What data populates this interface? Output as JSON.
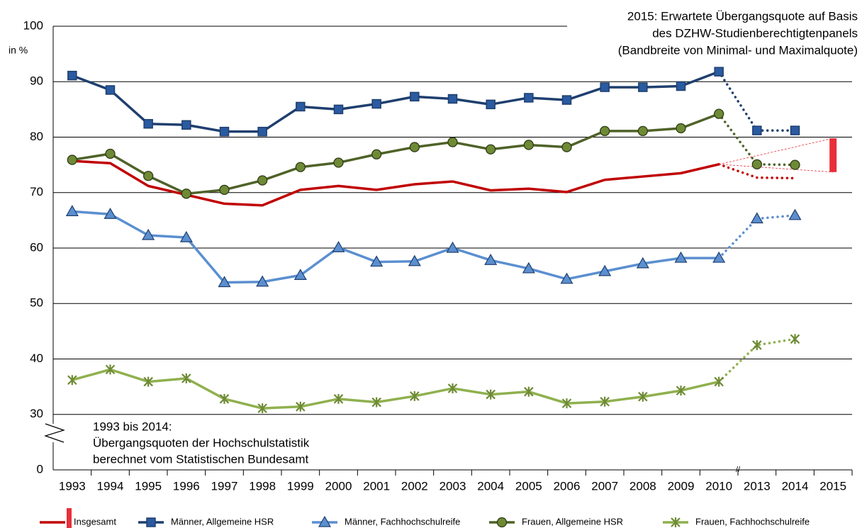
{
  "chart_data": {
    "type": "line",
    "y_axis_label": "in %",
    "categories": [
      "1993",
      "1994",
      "1995",
      "1996",
      "1997",
      "1998",
      "1999",
      "2000",
      "2001",
      "2002",
      "2003",
      "2004",
      "2005",
      "2006",
      "2007",
      "2008",
      "2009",
      "2010",
      "2013",
      "2014",
      "2015"
    ],
    "x_break_label": "//",
    "dashed_from": "2010",
    "ylim": [
      0,
      100
    ],
    "yticks": [
      0,
      30,
      40,
      50,
      60,
      70,
      80,
      90,
      100
    ],
    "y_axis_break": true,
    "grid": true,
    "series": [
      {
        "name": "Insgesamt",
        "color": "#c00000",
        "marker": "none",
        "values": [
          75.7,
          75.3,
          71.2,
          69.6,
          68.0,
          67.7,
          70.5,
          71.2,
          70.5,
          71.5,
          72.0,
          70.4,
          70.7,
          70.1,
          72.3,
          72.9,
          73.5,
          75.1,
          72.7,
          72.6,
          null
        ],
        "range": {
          "low": 73.7,
          "high": 79.8,
          "color": "#e8303a"
        }
      },
      {
        "name": "Männer, Allgemeine HSR",
        "color": "#1f3f6e",
        "marker": "square",
        "marker_color": "#2a5aa0",
        "values": [
          91.1,
          88.5,
          82.4,
          82.2,
          81.0,
          81.0,
          85.5,
          85.0,
          86.0,
          87.3,
          86.9,
          85.9,
          87.1,
          86.7,
          89.0,
          89.0,
          89.2,
          91.8,
          81.2,
          81.2,
          null
        ]
      },
      {
        "name": "Männer, Fachhochschulreife",
        "color": "#5b8fd0",
        "marker": "triangle",
        "marker_color": "#5b8fd0",
        "values": [
          66.6,
          66.1,
          62.3,
          61.9,
          53.8,
          53.9,
          55.1,
          60.1,
          57.5,
          57.6,
          60.0,
          57.8,
          56.3,
          54.4,
          55.8,
          57.2,
          58.2,
          58.2,
          65.3,
          65.9,
          null
        ]
      },
      {
        "name": "Frauen, Allgemeine HSR",
        "color": "#4f6228",
        "marker": "circle",
        "marker_color": "#6e8a36",
        "values": [
          75.9,
          77.0,
          73.0,
          69.8,
          70.5,
          72.2,
          74.6,
          75.4,
          76.9,
          78.2,
          79.1,
          77.8,
          78.6,
          78.2,
          81.1,
          81.1,
          81.6,
          84.2,
          75.1,
          75.0,
          null
        ]
      },
      {
        "name": "Frauen, Fachhochschulreife",
        "color": "#8fb04e",
        "marker": "star",
        "marker_color": "#6e8a36",
        "values": [
          36.2,
          38.1,
          35.9,
          36.5,
          32.8,
          31.1,
          31.4,
          32.8,
          32.2,
          33.3,
          34.7,
          33.6,
          34.1,
          32.0,
          32.3,
          33.2,
          34.3,
          35.9,
          42.5,
          43.6,
          null
        ]
      }
    ],
    "annotations": [
      [
        "2015: Erwartete Übergangsquote auf Basis",
        "des DZHW-Studienberechtigtenpanels",
        "(Bandbreite von Minimal- und Maximalquote)"
      ],
      [
        "1993 bis 2014:",
        "Übergangsquoten der Hochschulstatistik",
        "berechnet vom Statistischen Bundesamt"
      ]
    ]
  }
}
